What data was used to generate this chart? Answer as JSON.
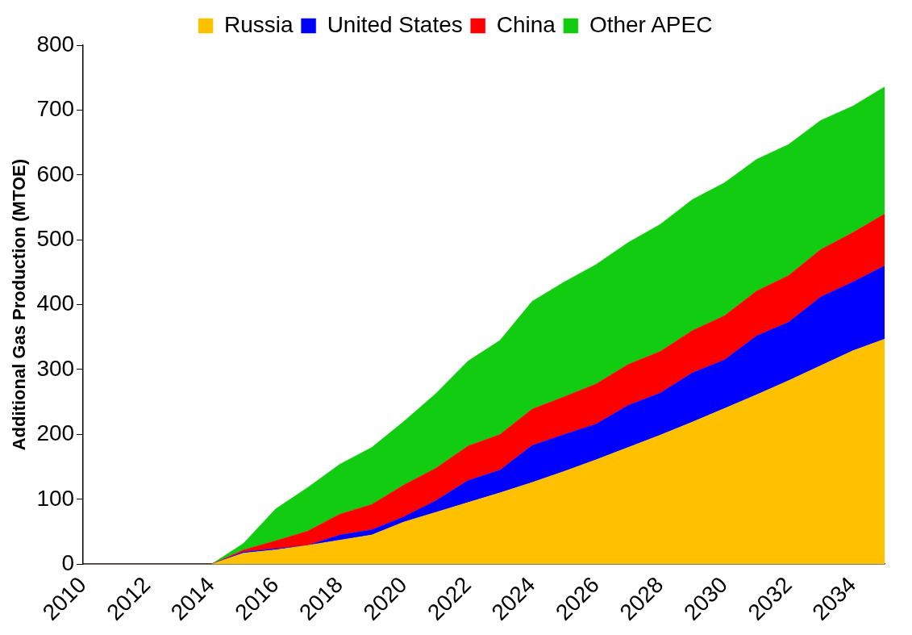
{
  "chart_data": {
    "type": "area",
    "stacked": true,
    "ylabel": "Additional Gas Production (MTOE)",
    "legend": "top",
    "grid": false,
    "categories": [
      "2010",
      null,
      "2012",
      null,
      "2014",
      null,
      "2016",
      null,
      "2018",
      null,
      "2020",
      null,
      "2022",
      null,
      "2024",
      null,
      "2026",
      null,
      "2028",
      null,
      "2030",
      null,
      "2032",
      null,
      "2034",
      null
    ],
    "ylim": [
      0,
      800
    ],
    "yticks": [
      0,
      100,
      200,
      300,
      400,
      500,
      600,
      700,
      800
    ],
    "series": [
      {
        "name": "Russia",
        "color": "#ffc000",
        "values": [
          0,
          0,
          0,
          0,
          0,
          17,
          22,
          29,
          37,
          45,
          65,
          80,
          95,
          110,
          126,
          143,
          161,
          180,
          199,
          219,
          240,
          261,
          283,
          306,
          329,
          347
        ]
      },
      {
        "name": "United States",
        "color": "#0000ff",
        "values": [
          0,
          0,
          0,
          0,
          0,
          2,
          2,
          0,
          8,
          8,
          8,
          18,
          34,
          35,
          57,
          57,
          55,
          65,
          65,
          76,
          75,
          91,
          90,
          106,
          106,
          113
        ]
      },
      {
        "name": "China",
        "color": "#ff0000",
        "values": [
          0,
          0,
          0,
          0,
          0,
          3,
          12,
          22,
          32,
          39,
          49,
          50,
          53,
          55,
          56,
          58,
          62,
          63,
          64,
          65,
          68,
          69,
          72,
          73,
          76,
          80
        ]
      },
      {
        "name": "Other APEC",
        "color": "#11cc11",
        "values": [
          0,
          0,
          0,
          0,
          0,
          10,
          49,
          67,
          77,
          88,
          98,
          115,
          131,
          145,
          166,
          177,
          184,
          188,
          196,
          202,
          205,
          203,
          202,
          199,
          195,
          196
        ]
      }
    ]
  }
}
